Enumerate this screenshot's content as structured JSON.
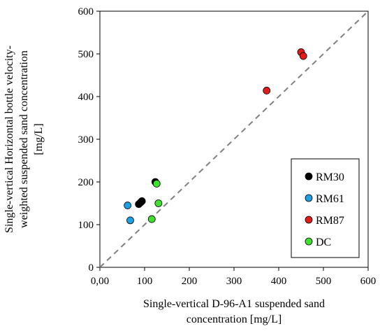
{
  "chart_data": {
    "type": "scatter",
    "title": "",
    "xlabel_lines": [
      "Single-vertical  D-96-A1 suspended sand",
      "concentration [mg/L]"
    ],
    "ylabel_lines": [
      "Single-vertical  Horizontal bottle velocity-",
      "weighted  suspended sand concentration",
      "[mg/L]"
    ],
    "xlim": [
      0,
      600
    ],
    "ylim": [
      0,
      600
    ],
    "xticks": [
      0,
      100,
      200,
      300,
      400,
      500,
      600
    ],
    "xtick_labels": [
      "0,00",
      "100",
      "200",
      "300",
      "400",
      "500",
      "600"
    ],
    "yticks": [
      0,
      100,
      200,
      300,
      400,
      500,
      600
    ],
    "ytick_labels": [
      "0",
      "100",
      "200",
      "300",
      "400",
      "500",
      "600"
    ],
    "grid": false,
    "reference_line": {
      "style": "dashed",
      "color": "#808080",
      "from": [
        0,
        0
      ],
      "to": [
        600,
        600
      ]
    },
    "legend_position": "lower-right",
    "series": [
      {
        "name": "RM30",
        "color": "#000000",
        "points": [
          [
            124,
            200
          ],
          [
            91,
            152
          ],
          [
            94,
            155
          ],
          [
            87,
            148
          ]
        ]
      },
      {
        "name": "RM61",
        "color": "#1f9fe0",
        "points": [
          [
            62,
            145
          ],
          [
            68,
            110
          ]
        ]
      },
      {
        "name": "RM87",
        "color": "#e21b1b",
        "points": [
          [
            450,
            504
          ],
          [
            455,
            495
          ],
          [
            373,
            414
          ]
        ]
      },
      {
        "name": "DC",
        "color": "#3fe030",
        "points": [
          [
            127,
            196
          ],
          [
            131,
            150
          ],
          [
            116,
            113
          ]
        ]
      }
    ]
  }
}
